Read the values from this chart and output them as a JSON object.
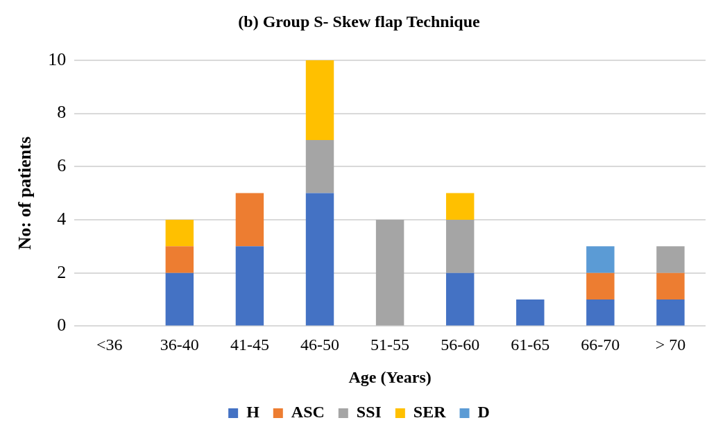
{
  "chart_data": {
    "type": "bar",
    "title": "(b) Group S- Skew flap Technique",
    "xlabel": "Age (Years)",
    "ylabel": "No: of patients",
    "categories": [
      "<36",
      "36-40",
      "41-45",
      "46-50",
      "51-55",
      "56-60",
      "61-65",
      "66-70",
      "> 70"
    ],
    "series": [
      {
        "name": "H",
        "color": "#4472c4",
        "values": [
          0,
          2,
          3,
          5,
          0,
          2,
          1,
          1,
          1
        ]
      },
      {
        "name": "ASC",
        "color": "#ed7d31",
        "values": [
          0,
          1,
          2,
          0,
          0,
          0,
          0,
          1,
          1
        ]
      },
      {
        "name": "SSI",
        "color": "#a5a5a5",
        "values": [
          0,
          0,
          0,
          2,
          4,
          2,
          0,
          0,
          1
        ]
      },
      {
        "name": "SER",
        "color": "#ffc000",
        "values": [
          0,
          1,
          0,
          3,
          0,
          1,
          0,
          0,
          0
        ]
      },
      {
        "name": "D",
        "color": "#5b9bd5",
        "values": [
          0,
          0,
          0,
          0,
          0,
          0,
          0,
          1,
          0
        ]
      }
    ],
    "stacked": true,
    "ylim": [
      0,
      10
    ],
    "yticks": [
      0,
      2,
      4,
      6,
      8,
      10
    ],
    "grid": "y",
    "legend": "bottom"
  }
}
